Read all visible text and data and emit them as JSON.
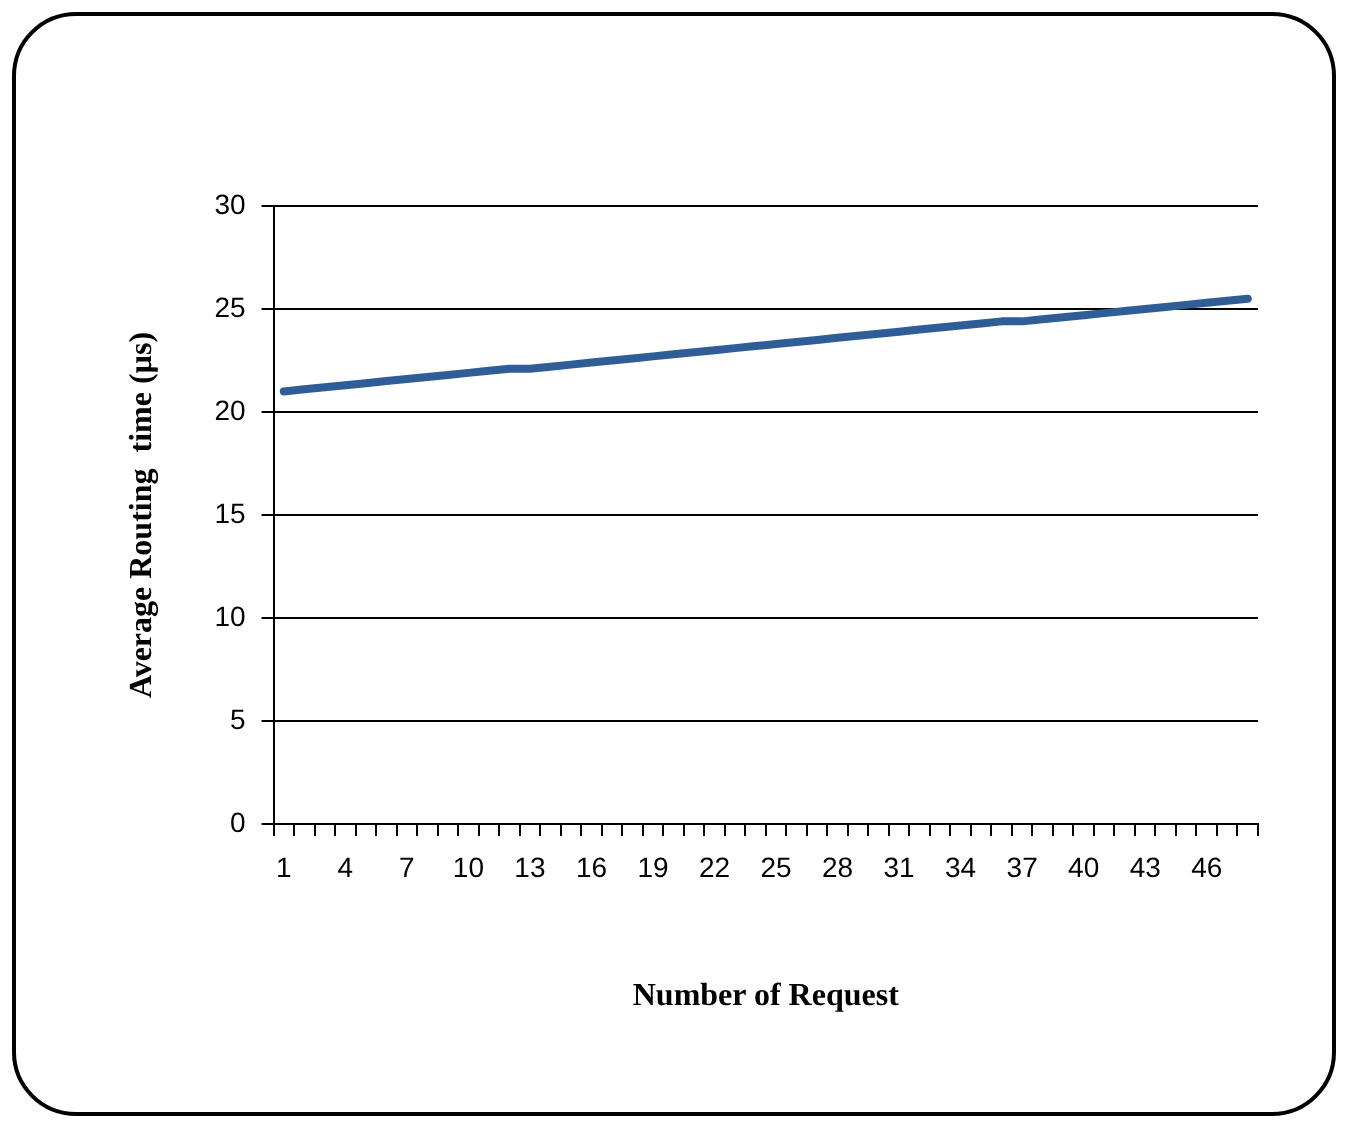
{
  "chart_data": {
    "type": "line",
    "xlabel": "Number of Request",
    "ylabel": "Average Routing  time (µs)",
    "categories": [
      "1",
      null,
      null,
      "4",
      null,
      null,
      "7",
      null,
      null,
      "10",
      null,
      null,
      "13",
      null,
      null,
      "16",
      null,
      null,
      "19",
      null,
      null,
      "22",
      null,
      null,
      "25",
      null,
      null,
      "28",
      null,
      null,
      "31",
      null,
      null,
      "34",
      null,
      null,
      "37",
      null,
      null,
      "40",
      null,
      null,
      "43",
      null,
      null,
      "46",
      null,
      null
    ],
    "series": [
      {
        "color": "#2e5d97",
        "values": [
          21.0,
          21.1,
          21.2,
          21.3,
          21.4,
          21.5,
          21.6,
          21.7,
          21.8,
          21.9,
          22.0,
          22.1,
          22.1,
          22.2,
          22.3,
          22.4,
          22.5,
          22.6,
          22.7,
          22.8,
          22.9,
          23.0,
          23.1,
          23.2,
          23.3,
          23.4,
          23.5,
          23.6,
          23.7,
          23.8,
          23.9,
          24.0,
          24.1,
          24.2,
          24.3,
          24.4,
          24.4,
          24.5,
          24.6,
          24.7,
          24.8,
          24.9,
          25.0,
          25.1,
          25.2,
          25.3,
          25.4,
          25.5
        ]
      }
    ],
    "ylim": [
      0,
      30
    ],
    "yticks": [
      0,
      5,
      10,
      15,
      20,
      25,
      30
    ],
    "grid": "y",
    "legend": false,
    "marker": "none",
    "line_style": "solid"
  }
}
